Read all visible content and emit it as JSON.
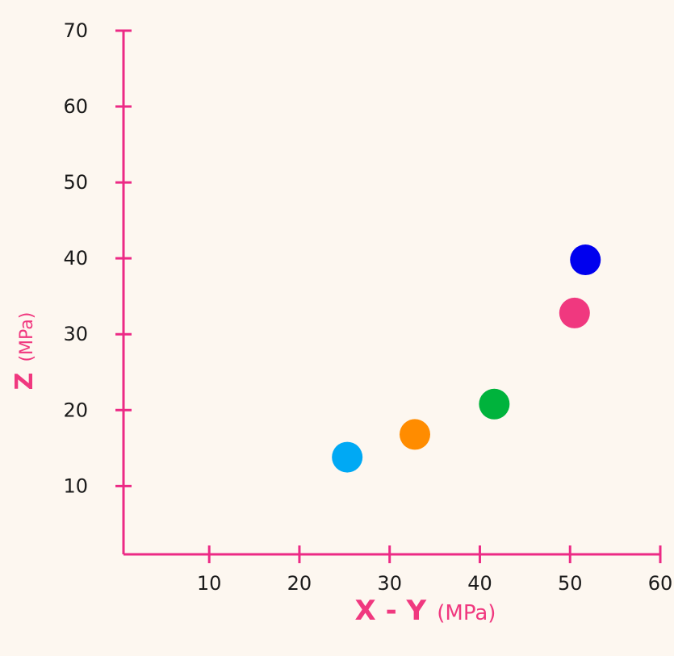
{
  "chart_data": {
    "type": "scatter",
    "title": "",
    "xlabel": {
      "main": "X - Y",
      "unit": "(MPa)"
    },
    "ylabel": {
      "main": "Z",
      "unit": "(MPa)"
    },
    "xlim": [
      0.5,
      60
    ],
    "ylim": [
      1,
      70
    ],
    "xticks": [
      10,
      20,
      30,
      40,
      50,
      60
    ],
    "yticks": [
      10,
      20,
      30,
      40,
      50,
      60,
      70
    ],
    "grid": false,
    "legend": "none",
    "axis_color": "#ec2a85",
    "points": [
      {
        "x": 25.3,
        "y": 13.8,
        "color": "#00a9f4"
      },
      {
        "x": 32.8,
        "y": 16.8,
        "color": "#ff8c00"
      },
      {
        "x": 41.6,
        "y": 20.8,
        "color": "#00b33c"
      },
      {
        "x": 50.5,
        "y": 32.8,
        "color": "#f0387f"
      },
      {
        "x": 51.7,
        "y": 39.8,
        "color": "#0000ee"
      }
    ]
  }
}
